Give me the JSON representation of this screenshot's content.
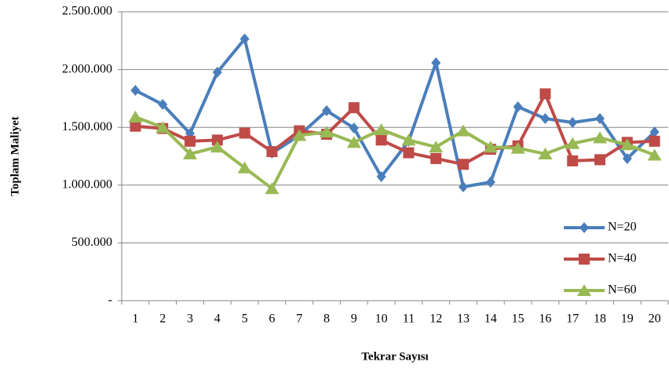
{
  "chart_data": {
    "type": "line",
    "x_label": "Tekrar Sayısı",
    "y_label": "Toplam Maliyet",
    "categories": [
      "1",
      "2",
      "3",
      "4",
      "5",
      "6",
      "7",
      "8",
      "9",
      "10",
      "11",
      "12",
      "13",
      "14",
      "15",
      "16",
      "17",
      "18",
      "19",
      "20"
    ],
    "series": [
      {
        "name": "N=20",
        "color": "#4a7ebb",
        "marker": "diamond",
        "values": [
          1820000,
          1698000,
          1447000,
          1977000,
          2265000,
          1277000,
          1430000,
          1644000,
          1494000,
          1073000,
          1380000,
          2058000,
          985000,
          1026000,
          1678000,
          1576000,
          1542000,
          1576000,
          1230000,
          1460000
        ]
      },
      {
        "name": "N=40",
        "color": "#be4b48",
        "marker": "square",
        "values": [
          1510000,
          1490000,
          1380000,
          1390000,
          1450000,
          1290000,
          1470000,
          1440000,
          1670000,
          1390000,
          1280000,
          1230000,
          1180000,
          1310000,
          1340000,
          1790000,
          1210000,
          1220000,
          1370000,
          1380000
        ]
      },
      {
        "name": "N=60",
        "color": "#98b954",
        "marker": "triangle",
        "values": [
          1590000,
          1500000,
          1270000,
          1330000,
          1150000,
          970000,
          1430000,
          1460000,
          1370000,
          1480000,
          1390000,
          1330000,
          1470000,
          1330000,
          1320000,
          1270000,
          1360000,
          1410000,
          1350000,
          1260000
        ]
      }
    ],
    "ylim": [
      0,
      2500000
    ],
    "yticks": [
      {
        "value": 0,
        "label": "-"
      },
      {
        "value": 500000,
        "label": "500.000"
      },
      {
        "value": 1000000,
        "label": "1.000.000"
      },
      {
        "value": 1500000,
        "label": "1.500.000"
      },
      {
        "value": 2000000,
        "label": "2.000.000"
      },
      {
        "value": 2500000,
        "label": "2.500.000"
      }
    ],
    "grid": true,
    "legend": "right"
  }
}
